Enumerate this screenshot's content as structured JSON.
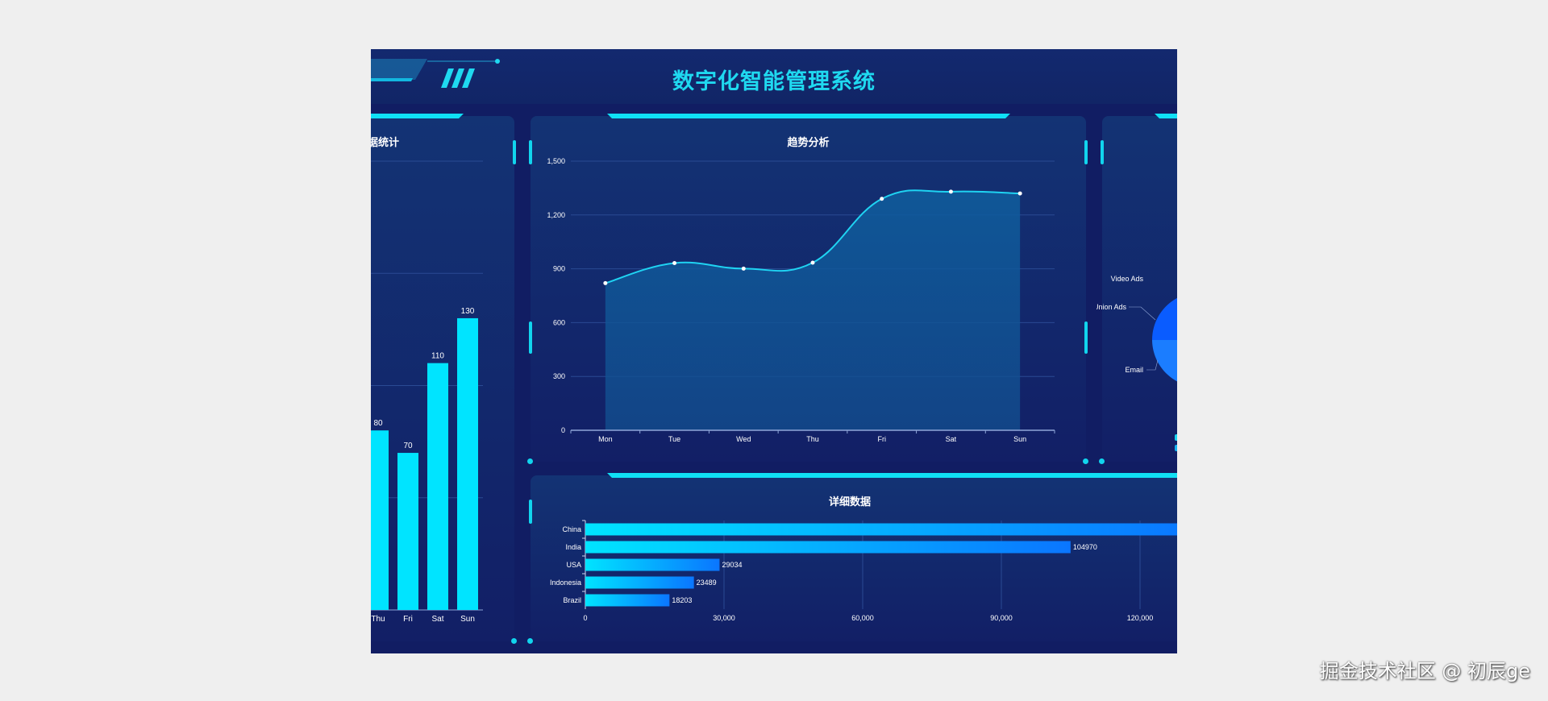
{
  "header": {
    "title": "数字化智能管理系统"
  },
  "colors": {
    "accent": "#0fe0f5",
    "background": "#111d63",
    "bar": "#00e4ff",
    "line": "#1fd3f2"
  },
  "left_panel": {
    "title": "据统计"
  },
  "trend_panel": {
    "title": "趋势分析"
  },
  "detail_panel": {
    "title": "详细数据"
  },
  "watermark": "掘金技术社区 @ 初辰ge",
  "chart_data": [
    {
      "type": "bar",
      "title": "据统计",
      "categories": [
        "Thu",
        "Fri",
        "Sat",
        "Sun"
      ],
      "values": [
        80,
        70,
        110,
        130
      ],
      "ylim": [
        0,
        200
      ],
      "grid": true,
      "data_labels": true
    },
    {
      "type": "area",
      "title": "趋势分析",
      "categories": [
        "Mon",
        "Tue",
        "Wed",
        "Thu",
        "Fri",
        "Sat",
        "Sun"
      ],
      "values": [
        820,
        932,
        901,
        934,
        1290,
        1330,
        1320
      ],
      "ylim": [
        0,
        1500
      ],
      "yticks": [
        "0",
        "300",
        "600",
        "900",
        "1,200",
        "1,500"
      ],
      "smooth": true,
      "grid": true
    },
    {
      "type": "pie",
      "labels": [
        "Video Ads",
        "Union Ads",
        "Email"
      ],
      "legend": "bottom-right"
    },
    {
      "type": "bar",
      "orientation": "horizontal",
      "title": "详细数据",
      "categories": [
        "China",
        "India",
        "USA",
        "Indonesia",
        "Brazil"
      ],
      "values": [
        131744,
        104970,
        29034,
        23489,
        18203
      ],
      "value_labels": [
        "",
        "104970",
        "29034",
        "23489",
        "18203"
      ],
      "xticks": [
        "0",
        "30,000",
        "60,000",
        "90,000",
        "120,000"
      ],
      "grid": true
    }
  ]
}
